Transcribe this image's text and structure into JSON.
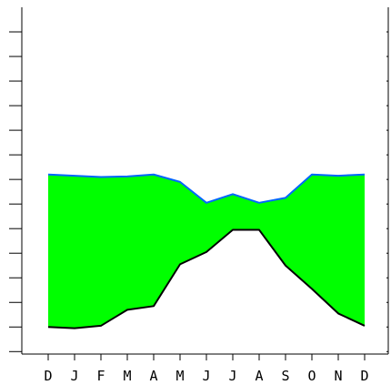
{
  "chart_data": {
    "type": "area",
    "categories": [
      "D",
      "J",
      "F",
      "M",
      "A",
      "M",
      "J",
      "J",
      "A",
      "S",
      "O",
      "N",
      "D"
    ],
    "series": [
      {
        "values": [
          6.8,
          6.85,
          6.9,
          6.88,
          6.8,
          7.1,
          7.95,
          7.6,
          7.95,
          7.75,
          6.8,
          6.85,
          6.8
        ]
      },
      {
        "values": [
          13.0,
          13.05,
          12.95,
          12.3,
          12.15,
          10.45,
          9.95,
          9.05,
          9.05,
          10.5,
          11.45,
          12.45,
          12.95
        ]
      }
    ],
    "ylim": [
      0,
      14.1
    ],
    "y_ticks": [
      1,
      2,
      3,
      4,
      5,
      6,
      7,
      8,
      9,
      10,
      11,
      12,
      13,
      14
    ],
    "upper_line_color": "#0066ff",
    "lower_line_color": "#000000",
    "fill_color": "#00ff00",
    "grid": false
  }
}
